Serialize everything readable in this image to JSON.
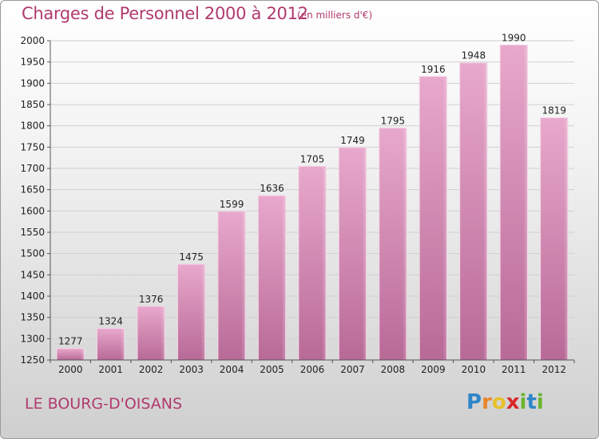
{
  "chart_data": {
    "type": "bar",
    "title": "Charges de Personnel 2000 à 2012",
    "subtitle": "(en milliers d'€)",
    "categories": [
      "2000",
      "2001",
      "2002",
      "2003",
      "2004",
      "2005",
      "2006",
      "2007",
      "2008",
      "2009",
      "2010",
      "2011",
      "2012"
    ],
    "values": [
      1277,
      1324,
      1376,
      1475,
      1599,
      1636,
      1705,
      1749,
      1795,
      1916,
      1948,
      1990,
      1819
    ],
    "ylim": [
      1250,
      2000
    ],
    "yticks": [
      1250,
      1300,
      1350,
      1400,
      1450,
      1500,
      1550,
      1600,
      1650,
      1700,
      1750,
      1800,
      1850,
      1900,
      1950,
      2000
    ],
    "grid": true,
    "bar_color": "#c5709e"
  },
  "footer": {
    "commune": "LE BOURG-D'OISANS",
    "logo_letters": [
      {
        "ch": "P",
        "color": "#2e86c8"
      },
      {
        "ch": "r",
        "color": "#e8862a"
      },
      {
        "ch": "o",
        "color": "#e8c02a"
      },
      {
        "ch": "x",
        "color": "#d8282a"
      },
      {
        "ch": "i",
        "color": "#6ab42e"
      },
      {
        "ch": "t",
        "color": "#2e86c8"
      },
      {
        "ch": "i",
        "color": "#6ab42e"
      }
    ]
  }
}
